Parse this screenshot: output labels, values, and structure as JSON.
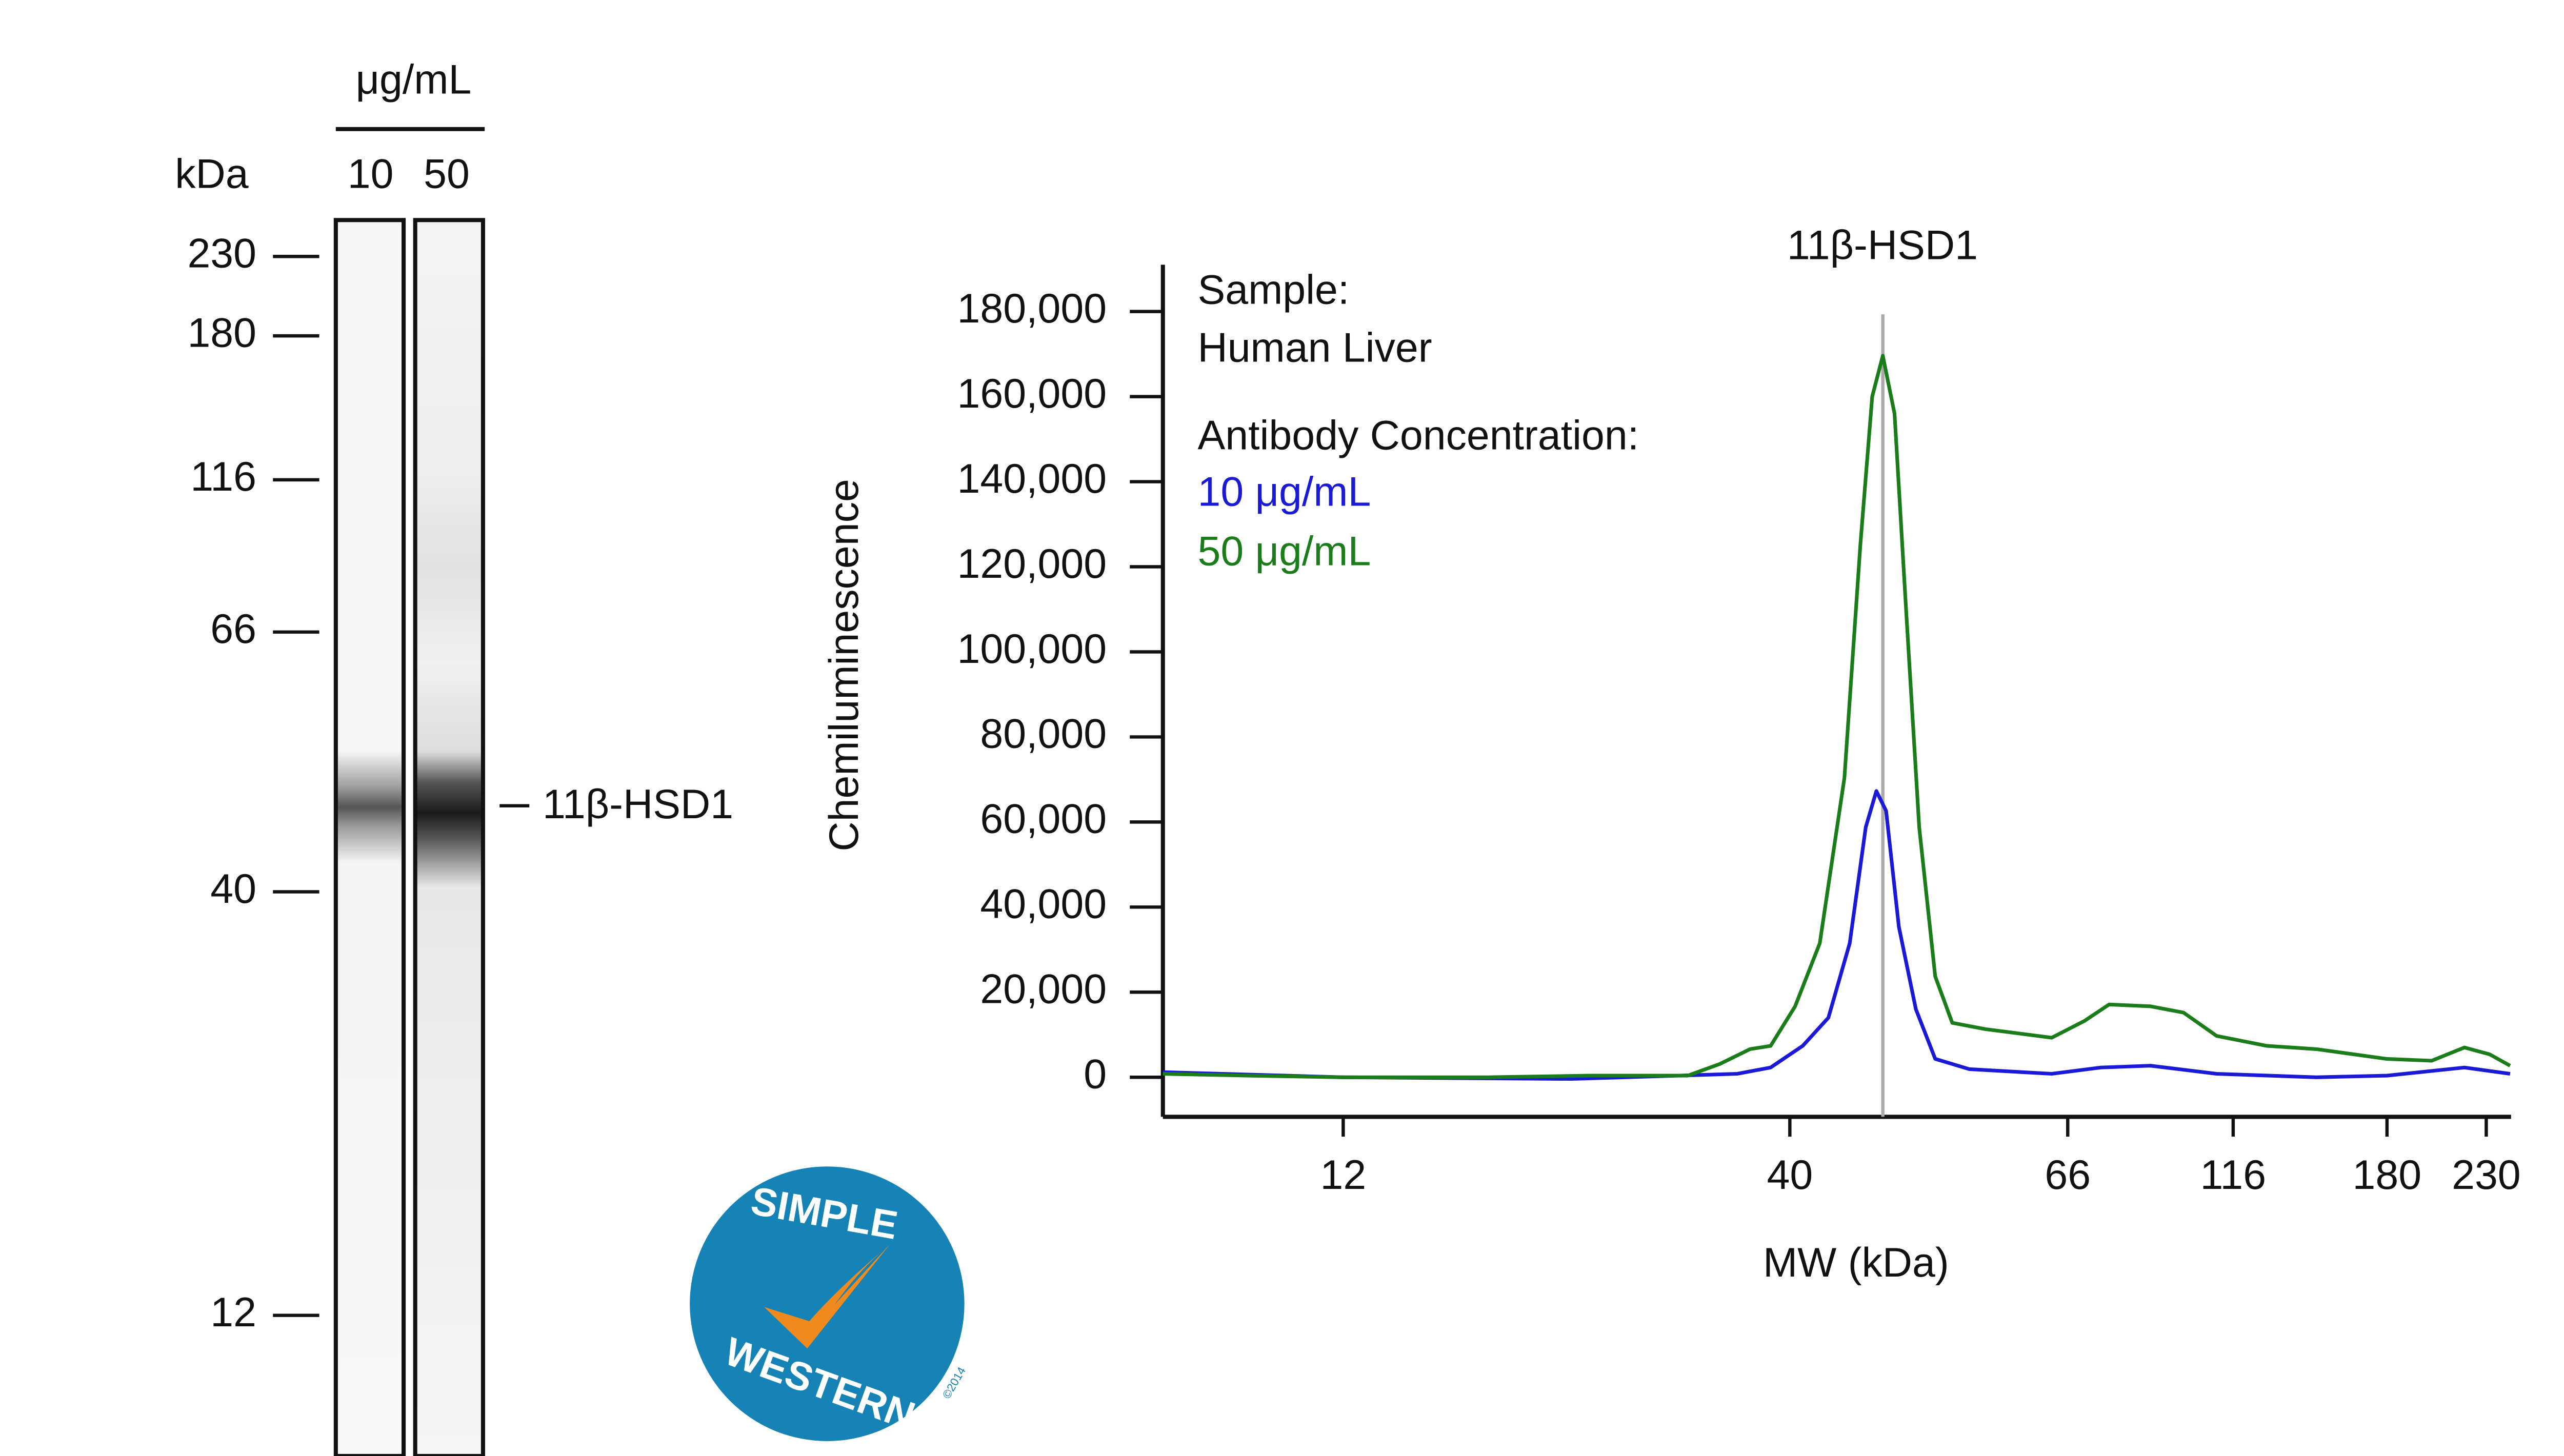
{
  "blot": {
    "unit_label": "μg/mL",
    "mw_label": "kDa",
    "lanes": [
      "10",
      "50"
    ],
    "ladder": [
      230,
      180,
      116,
      66,
      40,
      12
    ],
    "band_label": "11β-HSD1"
  },
  "logo": {
    "top": "SIMPLE",
    "bottom": "WESTERN",
    "copyright": "©2014"
  },
  "chart_data": {
    "type": "line",
    "title": "11β-HSD1",
    "marker_x": 48.7,
    "x_label": "MW (kDa)",
    "y_label": "Chemiluminescence",
    "sample_label": "Sample:",
    "sample": "Human Liver",
    "legend_title": "Antibody Concentration:",
    "xlim": [
      1,
      243
    ],
    "xticks": [
      12,
      40,
      66,
      116,
      180,
      230
    ],
    "ylim": [
      -9300,
      191000
    ],
    "yticks": [
      0,
      {
        "value": 20000,
        "label": "20,000"
      },
      {
        "value": 40000,
        "label": "40,000"
      },
      {
        "value": 60000,
        "label": "60,000"
      },
      {
        "value": 80000,
        "label": "80,000"
      },
      {
        "value": 100000,
        "label": "100,000"
      },
      {
        "value": 120000,
        "label": "120,000"
      },
      {
        "value": 140000,
        "label": "140,000"
      },
      {
        "value": 160000,
        "label": "160,000"
      },
      {
        "value": 180000,
        "label": "180,000"
      }
    ],
    "series": [
      {
        "name": "10 μg/mL",
        "color": "#1a1ad6",
        "x": [
          1,
          12,
          26.3,
          36.7,
          38.8,
          41.2,
          43.6,
          45.6,
          47.1,
          48.1,
          49.0,
          50.2,
          51.8,
          53.6,
          56.8,
          64.5,
          76,
          91,
          111,
          150.6,
          180,
          219,
          242.5
        ],
        "values": [
          1200,
          0,
          -400,
          800,
          2300,
          7400,
          14000,
          31500,
          58800,
          67300,
          62600,
          35400,
          16000,
          4300,
          1900,
          800,
          2300,
          2700,
          800,
          0,
          400,
          2300,
          800
        ]
      },
      {
        "name": "50 μg/mL",
        "color": "#1a7d1a",
        "x": [
          1,
          6.2,
          12,
          21.1,
          27.4,
          33.6,
          35.6,
          37.5,
          38.8,
          40.5,
          42.8,
          45.1,
          46.6,
          47.7,
          48.7,
          49.8,
          50.8,
          52.1,
          53.6,
          55.2,
          58.3,
          64.5,
          71,
          78.5,
          91,
          101,
          111,
          130,
          150.6,
          180,
          202.5,
          219,
          231.7,
          242.5
        ],
        "values": [
          800,
          400,
          0,
          0,
          400,
          400,
          3100,
          6600,
          7400,
          16700,
          31500,
          70400,
          125000,
          160000,
          169600,
          156000,
          113000,
          58800,
          23700,
          12800,
          11300,
          9300,
          13200,
          17100,
          16700,
          15200,
          9700,
          7400,
          6600,
          4300,
          3900,
          7000,
          5400,
          2700
        ]
      }
    ]
  }
}
